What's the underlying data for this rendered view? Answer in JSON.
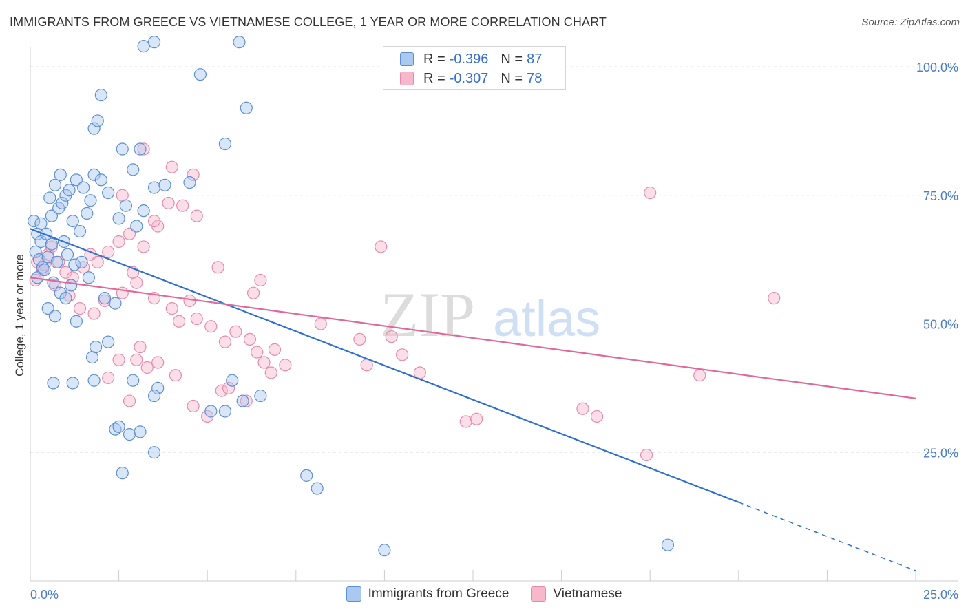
{
  "header": {
    "title": "IMMIGRANTS FROM GREECE VS VIETNAMESE COLLEGE, 1 YEAR OR MORE CORRELATION CHART",
    "source": "Source: ZipAtlas.com"
  },
  "watermark": {
    "zip": "ZIP",
    "atlas": "atlas"
  },
  "legend": {
    "rows": [
      {
        "r_label": "R =",
        "r_value": "-0.396",
        "n_label": "N =",
        "n_value": "87"
      },
      {
        "r_label": "R =",
        "r_value": "-0.307",
        "n_label": "N =",
        "n_value": "78"
      }
    ]
  },
  "bottom_legend": {
    "items": [
      {
        "label": "Immigrants from Greece"
      },
      {
        "label": "Vietnamese"
      }
    ]
  },
  "colors": {
    "blue_fill": "#aac8f0",
    "blue_stroke": "#5b8fd8",
    "blue_line": "#2f6fd0",
    "pink_fill": "#f7b8cc",
    "pink_stroke": "#e98aaa",
    "pink_line": "#e0689a",
    "grid": "#e4e4e4",
    "axis": "#cccccc",
    "tick_text": "#4a7cc7"
  },
  "chart_data": {
    "type": "scatter",
    "title": "IMMIGRANTS FROM GREECE VS VIETNAMESE COLLEGE, 1 YEAR OR MORE CORRELATION CHART",
    "xlabel": "",
    "ylabel": "College, 1 year or more",
    "xlim": [
      0,
      25
    ],
    "ylim": [
      0,
      100
    ],
    "x_tick_labels": [
      "0.0%",
      "25.0%"
    ],
    "y_ticks": [
      25,
      50,
      75,
      100
    ],
    "y_tick_labels": [
      "25.0%",
      "50.0%",
      "75.0%",
      "100.0%"
    ],
    "grid": true,
    "legend_position": "top-center",
    "series": [
      {
        "name": "Immigrants from Greece",
        "R": -0.396,
        "N": 87,
        "trend": {
          "x": [
            0,
            25
          ],
          "y": [
            68.5,
            2.0
          ],
          "solid_until_x": 20
        },
        "points": [
          [
            0.1,
            70.0
          ],
          [
            0.2,
            67.5
          ],
          [
            0.3,
            66.0
          ],
          [
            0.15,
            64.0
          ],
          [
            0.25,
            62.5
          ],
          [
            0.35,
            61.0
          ],
          [
            0.2,
            59.0
          ],
          [
            0.4,
            60.5
          ],
          [
            0.5,
            63.0
          ],
          [
            0.6,
            65.5
          ],
          [
            0.45,
            67.5
          ],
          [
            0.3,
            69.5
          ],
          [
            0.6,
            71.0
          ],
          [
            0.8,
            72.5
          ],
          [
            0.55,
            74.5
          ],
          [
            0.9,
            73.5
          ],
          [
            1.0,
            75.0
          ],
          [
            0.7,
            77.0
          ],
          [
            0.85,
            79.0
          ],
          [
            1.1,
            76.0
          ],
          [
            1.3,
            78.0
          ],
          [
            1.5,
            76.5
          ],
          [
            1.7,
            74.0
          ],
          [
            1.8,
            79.0
          ],
          [
            2.0,
            78.0
          ],
          [
            2.2,
            75.5
          ],
          [
            1.2,
            70.0
          ],
          [
            1.4,
            68.0
          ],
          [
            1.6,
            71.5
          ],
          [
            0.95,
            66.0
          ],
          [
            1.05,
            63.5
          ],
          [
            0.75,
            62.0
          ],
          [
            1.25,
            61.5
          ],
          [
            1.45,
            62.0
          ],
          [
            1.65,
            59.0
          ],
          [
            0.65,
            58.0
          ],
          [
            0.85,
            56.0
          ],
          [
            1.0,
            55.0
          ],
          [
            1.15,
            57.5
          ],
          [
            0.5,
            53.0
          ],
          [
            0.7,
            51.5
          ],
          [
            1.3,
            50.5
          ],
          [
            2.1,
            55.0
          ],
          [
            2.4,
            54.0
          ],
          [
            2.2,
            46.5
          ],
          [
            1.75,
            43.5
          ],
          [
            1.8,
            39.0
          ],
          [
            1.2,
            38.5
          ],
          [
            0.65,
            38.5
          ],
          [
            3.6,
            37.5
          ],
          [
            1.85,
            45.5
          ],
          [
            2.5,
            70.5
          ],
          [
            2.7,
            73.0
          ],
          [
            3.0,
            69.0
          ],
          [
            3.2,
            72.0
          ],
          [
            3.5,
            76.5
          ],
          [
            2.9,
            80.0
          ],
          [
            3.1,
            84.0
          ],
          [
            4.5,
            77.5
          ],
          [
            2.6,
            84.0
          ],
          [
            3.8,
            77.0
          ],
          [
            5.5,
            85.0
          ],
          [
            1.8,
            88.0
          ],
          [
            2.0,
            94.5
          ],
          [
            1.9,
            89.5
          ],
          [
            3.2,
            104.0
          ],
          [
            4.8,
            98.5
          ],
          [
            5.9,
            105.0
          ],
          [
            6.1,
            92.0
          ],
          [
            3.5,
            105.5
          ],
          [
            2.4,
            29.5
          ],
          [
            2.8,
            28.5
          ],
          [
            2.9,
            39.0
          ],
          [
            5.1,
            33.0
          ],
          [
            5.5,
            33.0
          ],
          [
            6.0,
            35.0
          ],
          [
            6.5,
            36.0
          ],
          [
            3.1,
            29.0
          ],
          [
            3.5,
            25.0
          ],
          [
            5.7,
            39.0
          ],
          [
            3.5,
            36.0
          ],
          [
            2.6,
            21.0
          ],
          [
            2.5,
            30.0
          ],
          [
            8.1,
            18.0
          ],
          [
            7.8,
            20.5
          ],
          [
            10.0,
            6.0
          ],
          [
            18.0,
            7.0
          ]
        ]
      },
      {
        "name": "Vietnamese",
        "R": -0.307,
        "N": 78,
        "trend": {
          "x": [
            0,
            25
          ],
          "y": [
            59.0,
            35.5
          ]
        },
        "points": [
          [
            0.2,
            62.0
          ],
          [
            0.35,
            60.5
          ],
          [
            0.5,
            63.5
          ],
          [
            0.15,
            58.5
          ],
          [
            0.4,
            61.5
          ],
          [
            0.6,
            65.0
          ],
          [
            0.8,
            62.0
          ],
          [
            1.0,
            60.0
          ],
          [
            1.2,
            59.0
          ],
          [
            0.7,
            57.5
          ],
          [
            1.5,
            61.0
          ],
          [
            1.7,
            63.5
          ],
          [
            1.9,
            62.0
          ],
          [
            2.2,
            64.0
          ],
          [
            2.5,
            66.0
          ],
          [
            2.8,
            67.5
          ],
          [
            3.2,
            65.0
          ],
          [
            3.6,
            69.0
          ],
          [
            2.9,
            60.0
          ],
          [
            1.1,
            55.5
          ],
          [
            1.4,
            53.0
          ],
          [
            1.8,
            52.0
          ],
          [
            2.1,
            54.5
          ],
          [
            2.6,
            56.0
          ],
          [
            3.0,
            58.0
          ],
          [
            3.5,
            55.0
          ],
          [
            4.0,
            53.0
          ],
          [
            4.5,
            54.5
          ],
          [
            4.2,
            50.5
          ],
          [
            4.7,
            51.0
          ],
          [
            5.1,
            49.5
          ],
          [
            5.5,
            46.5
          ],
          [
            5.8,
            48.5
          ],
          [
            6.2,
            47.0
          ],
          [
            6.4,
            44.5
          ],
          [
            6.6,
            42.5
          ],
          [
            6.9,
            45.0
          ],
          [
            3.1,
            45.5
          ],
          [
            3.3,
            41.5
          ],
          [
            3.6,
            42.5
          ],
          [
            2.5,
            43.0
          ],
          [
            2.2,
            39.5
          ],
          [
            2.8,
            35.0
          ],
          [
            3.0,
            43.0
          ],
          [
            4.1,
            40.0
          ],
          [
            4.6,
            34.0
          ],
          [
            5.0,
            32.0
          ],
          [
            5.4,
            37.0
          ],
          [
            5.6,
            37.5
          ],
          [
            6.1,
            35.0
          ],
          [
            6.8,
            40.5
          ],
          [
            7.2,
            42.0
          ],
          [
            8.2,
            50.0
          ],
          [
            9.3,
            47.0
          ],
          [
            9.5,
            42.0
          ],
          [
            9.9,
            65.0
          ],
          [
            10.2,
            47.5
          ],
          [
            10.5,
            44.0
          ],
          [
            11.0,
            40.5
          ],
          [
            12.3,
            31.0
          ],
          [
            12.6,
            31.5
          ],
          [
            6.3,
            56.0
          ],
          [
            6.5,
            58.5
          ],
          [
            5.3,
            61.0
          ],
          [
            3.5,
            70.0
          ],
          [
            4.7,
            71.0
          ],
          [
            4.3,
            73.0
          ],
          [
            2.6,
            75.0
          ],
          [
            3.9,
            73.5
          ],
          [
            3.2,
            84.0
          ],
          [
            4.0,
            80.5
          ],
          [
            4.6,
            79.0
          ],
          [
            17.5,
            75.5
          ],
          [
            16.0,
            32.0
          ],
          [
            17.4,
            24.5
          ],
          [
            21.0,
            55.0
          ],
          [
            18.9,
            40.0
          ],
          [
            15.6,
            33.5
          ]
        ]
      }
    ]
  }
}
